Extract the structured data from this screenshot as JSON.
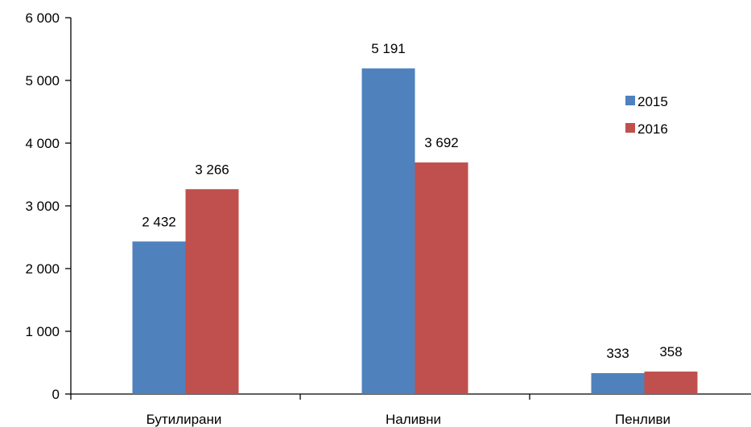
{
  "chart_data": {
    "type": "bar",
    "title": "",
    "xlabel": "",
    "ylabel": "",
    "categories": [
      "Бутилирани",
      "Наливни",
      "Пенливи"
    ],
    "series": [
      {
        "name": "2015",
        "color": "#4f81bd",
        "values": [
          2432,
          5191,
          333
        ],
        "labels": [
          "2 432",
          "5 191",
          "333"
        ]
      },
      {
        "name": "2016",
        "color": "#c0504d",
        "values": [
          3266,
          3692,
          358
        ],
        "labels": [
          "3 266",
          "3 692",
          "358"
        ]
      }
    ],
    "ylim": [
      0,
      6000
    ],
    "yticks": [
      0,
      1000,
      2000,
      3000,
      4000,
      5000,
      6000
    ],
    "ytick_labels": [
      "0",
      "1 000",
      "2 000",
      "3 000",
      "4 000",
      "5 000",
      "6 000"
    ],
    "grid": false,
    "legend_position": "right"
  }
}
